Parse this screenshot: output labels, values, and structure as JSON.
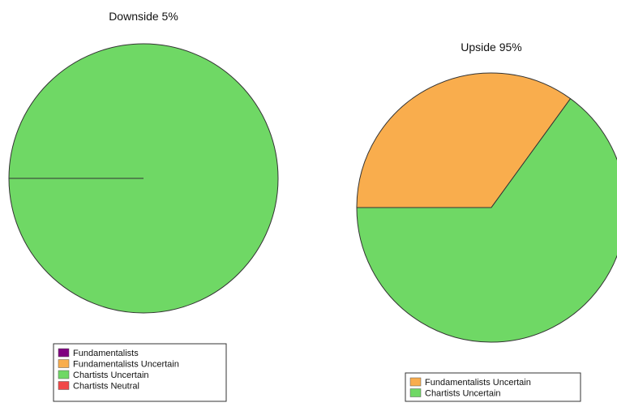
{
  "chart_data": [
    {
      "type": "pie",
      "title": "Downside 5%",
      "slices": [
        {
          "label": "Fundamentalists",
          "value": 0,
          "color": "#800080"
        },
        {
          "label": "Fundamentalists Uncertain",
          "value": 0,
          "color": "#f9ad4d"
        },
        {
          "label": "Chartists Uncertain",
          "value": 100,
          "color": "#6fd865"
        },
        {
          "label": "Chartists Neutral",
          "value": 0,
          "color": "#f14848"
        }
      ],
      "legend": "bottom"
    },
    {
      "type": "pie",
      "title": "Upside 95%",
      "slices": [
        {
          "label": "Fundamentalists Uncertain",
          "value": 35,
          "color": "#f9ad4d"
        },
        {
          "label": "Chartists Uncertain",
          "value": 65,
          "color": "#6fd865"
        }
      ],
      "legend": "bottom"
    }
  ]
}
